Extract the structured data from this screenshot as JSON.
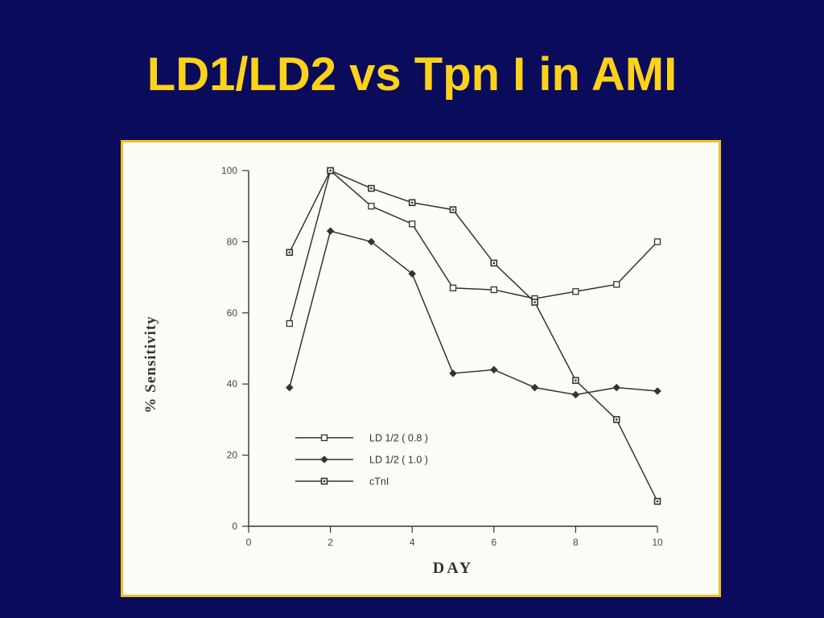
{
  "slide": {
    "title": "LD1/LD2 vs Tpn I in AMI"
  },
  "colors": {
    "background": "#0b0b5c",
    "title": "#ffd21a",
    "frame_border": "#f2c21b",
    "plot_background": "#fdfdf8",
    "ink": "#333333"
  },
  "chart_data": {
    "type": "line",
    "xlabel": "DAY",
    "ylabel": "% Sensitivity",
    "xlim": [
      0,
      10
    ],
    "ylim": [
      0,
      100
    ],
    "xticks": [
      0,
      2,
      4,
      6,
      8,
      10
    ],
    "yticks": [
      0,
      20,
      40,
      60,
      80,
      100
    ],
    "grid": false,
    "legend_position": "lower-left",
    "series": [
      {
        "name": "LD 1/2 ( 0.8 )",
        "marker": "open-square",
        "x": [
          1,
          2,
          3,
          4,
          5,
          6,
          7,
          8,
          9,
          10
        ],
        "y": [
          57,
          100,
          90,
          85,
          67,
          66.5,
          64,
          66,
          68,
          80
        ]
      },
      {
        "name": "LD 1/2 ( 1.0 )",
        "marker": "filled-diamond",
        "x": [
          1,
          2,
          3,
          4,
          5,
          6,
          7,
          8,
          9,
          10
        ],
        "y": [
          39,
          83,
          80,
          71,
          43,
          44,
          39,
          37,
          39,
          38
        ]
      },
      {
        "name": "cTnI",
        "marker": "dotted-square",
        "x": [
          1,
          2,
          3,
          4,
          5,
          6,
          7,
          8,
          9,
          10
        ],
        "y": [
          77,
          100,
          95,
          91,
          89,
          74,
          63,
          41,
          30,
          7
        ]
      }
    ]
  }
}
